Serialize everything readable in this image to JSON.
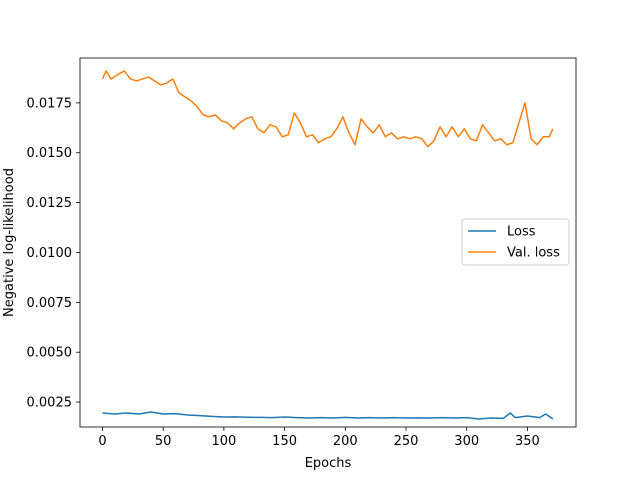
{
  "chart_data": {
    "type": "line",
    "title": "",
    "xlabel": "Epochs",
    "ylabel": "Negative log-likelihood",
    "xlim": [
      -18.5,
      390
    ],
    "ylim": [
      0.00125,
      0.01975
    ],
    "xticks": [
      0,
      50,
      100,
      150,
      200,
      250,
      300,
      350
    ],
    "xtick_labels": [
      "0",
      "50",
      "100",
      "150",
      "200",
      "250",
      "300",
      "350"
    ],
    "yticks": [
      0.0025,
      0.005,
      0.0075,
      0.01,
      0.0125,
      0.015,
      0.0175
    ],
    "ytick_labels": [
      "0.0025",
      "0.0050",
      "0.0075",
      "0.0100",
      "0.0125",
      "0.0150",
      "0.0175"
    ],
    "grid": false,
    "legend_position": "center-right",
    "series": [
      {
        "name": "Loss",
        "color": "#1f77b4",
        "x": [
          0,
          10,
          20,
          30,
          40,
          50,
          60,
          70,
          80,
          90,
          100,
          110,
          120,
          130,
          140,
          150,
          160,
          170,
          180,
          190,
          200,
          210,
          220,
          230,
          240,
          250,
          260,
          270,
          280,
          290,
          300,
          310,
          320,
          330,
          336,
          340,
          350,
          360,
          365,
          371
        ],
        "y": [
          0.00195,
          0.0019,
          0.00195,
          0.0019,
          0.002,
          0.0019,
          0.00192,
          0.00185,
          0.00182,
          0.00178,
          0.00175,
          0.00176,
          0.00174,
          0.00173,
          0.00172,
          0.00175,
          0.00172,
          0.0017,
          0.00172,
          0.0017,
          0.00173,
          0.0017,
          0.00172,
          0.0017,
          0.00172,
          0.0017,
          0.00171,
          0.0017,
          0.00172,
          0.0017,
          0.00172,
          0.00165,
          0.0017,
          0.00168,
          0.00195,
          0.00172,
          0.0018,
          0.00172,
          0.0019,
          0.00165
        ]
      },
      {
        "name": "Val. loss",
        "color": "#ff7f0e",
        "x": [
          0,
          3,
          7,
          12,
          18,
          23,
          28,
          33,
          38,
          43,
          48,
          53,
          58,
          63,
          68,
          73,
          78,
          83,
          88,
          93,
          98,
          103,
          108,
          113,
          118,
          123,
          128,
          133,
          138,
          143,
          148,
          153,
          158,
          163,
          168,
          173,
          178,
          183,
          188,
          193,
          198,
          203,
          208,
          213,
          218,
          223,
          228,
          233,
          238,
          243,
          248,
          253,
          258,
          263,
          268,
          273,
          278,
          283,
          288,
          293,
          298,
          303,
          308,
          313,
          318,
          323,
          328,
          333,
          338,
          343,
          348,
          353,
          358,
          363,
          368,
          371
        ],
        "y": [
          0.0187,
          0.0191,
          0.0187,
          0.0189,
          0.0191,
          0.0187,
          0.0186,
          0.0187,
          0.0188,
          0.0186,
          0.0184,
          0.0185,
          0.0187,
          0.018,
          0.0178,
          0.0176,
          0.0173,
          0.0169,
          0.0168,
          0.0169,
          0.0166,
          0.0165,
          0.0162,
          0.0165,
          0.0167,
          0.0168,
          0.0162,
          0.016,
          0.0164,
          0.0163,
          0.0158,
          0.0159,
          0.017,
          0.0165,
          0.0158,
          0.0159,
          0.0155,
          0.0157,
          0.0158,
          0.0162,
          0.0168,
          0.016,
          0.0154,
          0.0167,
          0.0163,
          0.016,
          0.0164,
          0.0158,
          0.016,
          0.0157,
          0.0158,
          0.0157,
          0.0158,
          0.0157,
          0.0153,
          0.0156,
          0.0163,
          0.0158,
          0.0163,
          0.0158,
          0.0162,
          0.0157,
          0.0156,
          0.0164,
          0.016,
          0.0156,
          0.0157,
          0.0154,
          0.0155,
          0.0165,
          0.0175,
          0.0157,
          0.0154,
          0.0158,
          0.0158,
          0.0162
        ]
      }
    ]
  }
}
